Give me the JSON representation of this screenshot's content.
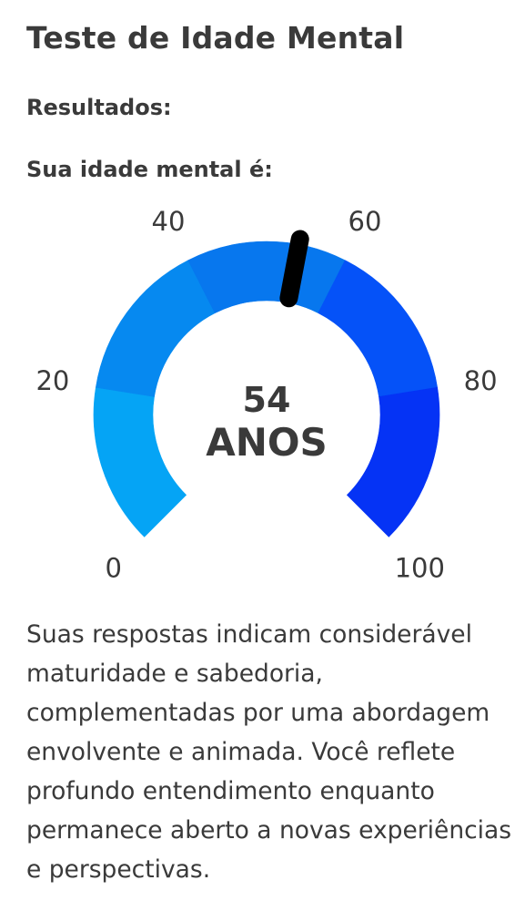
{
  "header": {
    "title": "Teste de Idade Mental"
  },
  "results": {
    "label": "Resultados:",
    "heading": "Sua idade mental é:"
  },
  "gauge": {
    "value": 54,
    "value_text": "54",
    "unit": "ANOS",
    "min": 0,
    "max": 100,
    "ticks": [
      {
        "value": 0,
        "label": "0"
      },
      {
        "value": 20,
        "label": "20"
      },
      {
        "value": 40,
        "label": "40"
      },
      {
        "value": 60,
        "label": "60"
      },
      {
        "value": 80,
        "label": "80"
      },
      {
        "value": 100,
        "label": "100"
      }
    ],
    "bands": [
      {
        "from": 0,
        "to": 20,
        "color": "#05a4f5"
      },
      {
        "from": 20,
        "to": 40,
        "color": "#0689f0"
      },
      {
        "from": 40,
        "to": 60,
        "color": "#0777ee"
      },
      {
        "from": 60,
        "to": 80,
        "color": "#0552f8"
      },
      {
        "from": 80,
        "to": 100,
        "color": "#0533f5"
      }
    ],
    "needle_color": "#000000"
  },
  "description": {
    "text": "Suas respostas indicam considerável maturidade e sabedoria, complementadas por uma abordagem envolvente e animada. Você reflete profundo entendimento enquanto permanece aberto a novas experiências e perspectivas."
  }
}
